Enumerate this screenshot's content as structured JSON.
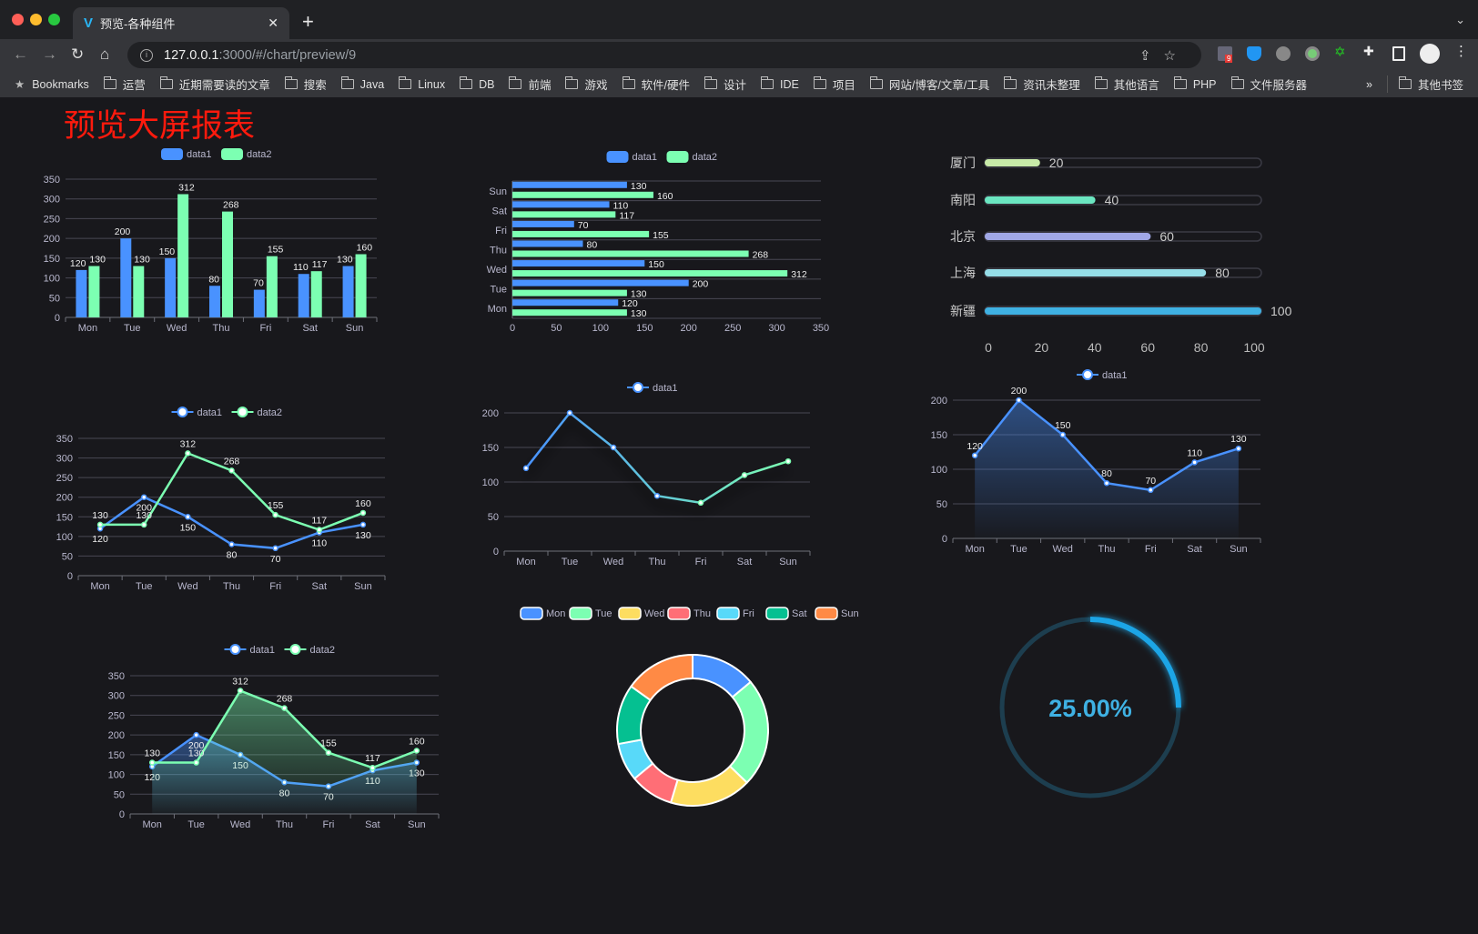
{
  "browser": {
    "tab_title": "预览-各种组件",
    "url_host": "127.0.0.1",
    "url_path": ":3000/#/chart/preview/9",
    "extension_badge": "9",
    "bookmarks": [
      "Bookmarks",
      "运营",
      "近期需要读的文章",
      "搜索",
      "Java",
      "Linux",
      "DB",
      "前端",
      "游戏",
      "软件/硬件",
      "设计",
      "IDE",
      "项目",
      "网站/博客/文章/工具",
      "资讯未整理",
      "其他语言",
      "PHP",
      "文件服务器"
    ],
    "bookmarks_more": "»",
    "other_bookmarks": "其他书签"
  },
  "page": {
    "title": "预览大屏报表"
  },
  "colors": {
    "data1": "#4992ff",
    "data2": "#7cffb2",
    "background": "#18181c",
    "title": "#ff1a0d"
  },
  "chart_data": [
    {
      "type": "bar",
      "orientation": "vertical",
      "legend": [
        "data1",
        "data2"
      ],
      "categories": [
        "Mon",
        "Tue",
        "Wed",
        "Thu",
        "Fri",
        "Sat",
        "Sun"
      ],
      "series": [
        {
          "name": "data1",
          "values": [
            120,
            200,
            150,
            80,
            70,
            110,
            130
          ]
        },
        {
          "name": "data2",
          "values": [
            130,
            130,
            312,
            268,
            155,
            117,
            160
          ]
        }
      ],
      "ylim": [
        0,
        350
      ],
      "yticks": [
        0,
        50,
        100,
        150,
        200,
        250,
        300,
        350
      ],
      "data_labels": true,
      "grid": true
    },
    {
      "type": "bar",
      "orientation": "horizontal",
      "legend": [
        "data1",
        "data2"
      ],
      "categories": [
        "Mon",
        "Tue",
        "Wed",
        "Thu",
        "Fri",
        "Sat",
        "Sun"
      ],
      "series": [
        {
          "name": "data1",
          "values": [
            120,
            200,
            150,
            80,
            70,
            110,
            130
          ]
        },
        {
          "name": "data2",
          "values": [
            130,
            130,
            312,
            268,
            155,
            117,
            160
          ]
        }
      ],
      "xlim": [
        0,
        350
      ],
      "xticks": [
        0,
        50,
        100,
        150,
        200,
        250,
        300,
        350
      ],
      "data_labels": true,
      "grid": true
    },
    {
      "type": "bar",
      "orientation": "progress",
      "categories": [
        "厦门",
        "南阳",
        "北京",
        "上海",
        "新疆"
      ],
      "values": [
        20,
        40,
        60,
        80,
        100
      ],
      "colors": [
        "#c8eba8",
        "#6be6c1",
        "#a0a7e6",
        "#96dee8",
        "#3fb1e3"
      ],
      "xlim": [
        0,
        100
      ],
      "xticks": [
        0,
        20,
        40,
        60,
        80,
        100
      ]
    },
    {
      "type": "line",
      "legend": [
        "data1",
        "data2"
      ],
      "categories": [
        "Mon",
        "Tue",
        "Wed",
        "Thu",
        "Fri",
        "Sat",
        "Sun"
      ],
      "series": [
        {
          "name": "data1",
          "values": [
            120,
            200,
            150,
            80,
            70,
            110,
            130
          ]
        },
        {
          "name": "data2",
          "values": [
            130,
            130,
            312,
            268,
            155,
            117,
            160
          ]
        }
      ],
      "ylim": [
        0,
        350
      ],
      "yticks": [
        0,
        50,
        100,
        150,
        200,
        250,
        300,
        350
      ],
      "data_labels": true,
      "grid": true
    },
    {
      "type": "line",
      "legend": [
        "data1"
      ],
      "categories": [
        "Mon",
        "Tue",
        "Wed",
        "Thu",
        "Fri",
        "Sat",
        "Sun"
      ],
      "series": [
        {
          "name": "data1",
          "values": [
            120,
            200,
            150,
            80,
            70,
            110,
            130
          ]
        }
      ],
      "ylim": [
        0,
        200
      ],
      "yticks": [
        0,
        50,
        100,
        150,
        200
      ],
      "data_labels": false,
      "grid": true,
      "gradient_line": true
    },
    {
      "type": "area",
      "legend": [
        "data1"
      ],
      "categories": [
        "Mon",
        "Tue",
        "Wed",
        "Thu",
        "Fri",
        "Sat",
        "Sun"
      ],
      "series": [
        {
          "name": "data1",
          "values": [
            120,
            200,
            150,
            80,
            70,
            110,
            130
          ]
        }
      ],
      "ylim": [
        0,
        200
      ],
      "yticks": [
        0,
        50,
        100,
        150,
        200
      ],
      "data_labels": true,
      "grid": true
    },
    {
      "type": "pie",
      "style": "donut",
      "legend": [
        "Mon",
        "Tue",
        "Wed",
        "Thu",
        "Fri",
        "Sat",
        "Sun"
      ],
      "values": [
        120,
        200,
        150,
        80,
        70,
        110,
        130
      ],
      "colors": [
        "#4992ff",
        "#7cffb2",
        "#fddd60",
        "#ff6e76",
        "#58d9f9",
        "#05c091",
        "#ff8a45"
      ]
    },
    {
      "type": "area",
      "legend": [
        "data1",
        "data2"
      ],
      "categories": [
        "Mon",
        "Tue",
        "Wed",
        "Thu",
        "Fri",
        "Sat",
        "Sun"
      ],
      "series": [
        {
          "name": "data1",
          "values": [
            120,
            200,
            150,
            80,
            70,
            110,
            130
          ]
        },
        {
          "name": "data2",
          "values": [
            130,
            130,
            312,
            268,
            155,
            117,
            160
          ]
        }
      ],
      "ylim": [
        0,
        350
      ],
      "yticks": [
        0,
        50,
        100,
        150,
        200,
        250,
        300,
        350
      ],
      "data_labels": true,
      "grid": true
    },
    {
      "type": "gauge",
      "style": "progress-ring",
      "value": 0.25,
      "label": "25.00%",
      "color": "#1ea5e6"
    }
  ]
}
